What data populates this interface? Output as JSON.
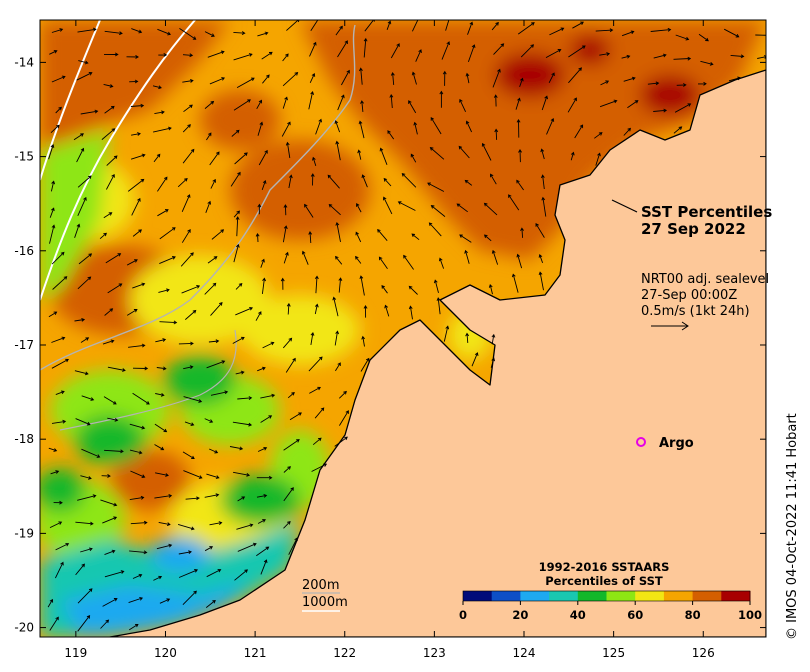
{
  "title": {
    "line1": "SST Percentiles",
    "line2": "27 Sep 2022"
  },
  "current_legend": {
    "line1": "NRT00 adj. sealevel",
    "line2": "27-Sep 00:00Z",
    "line3": "0.5m/s (1kt 24h)"
  },
  "argo": {
    "label": "Argo",
    "lon": 125.25,
    "lat": -18.0,
    "color": "#e600e6"
  },
  "depth_legend": {
    "line1": "200m",
    "line2": "1000m"
  },
  "colorbar": {
    "title_line1": "1992-2016 SSTAARS",
    "title_line2": "Percentiles of SST",
    "colors": [
      "#000c7a",
      "#0d4fc7",
      "#1ea9f0",
      "#19c7b0",
      "#12b82a",
      "#8ee614",
      "#f2e614",
      "#f5a500",
      "#d45f00",
      "#a80000"
    ],
    "ticks": [
      "0",
      "20",
      "40",
      "60",
      "80",
      "100"
    ]
  },
  "axes": {
    "x_ticks": [
      "119",
      "120",
      "121",
      "122",
      "123",
      "124",
      "125",
      "126"
    ],
    "y_ticks": [
      "-14",
      "-15",
      "-16",
      "-17",
      "-18",
      "-19",
      "-20"
    ],
    "xlim": [
      118.6,
      126.7
    ],
    "ylim": [
      -20.1,
      -13.55
    ]
  },
  "colors": {
    "land": "#fdc899",
    "coast": "#000000",
    "bathy": "#b4b4b4",
    "contour_1000": "#ffffff"
  },
  "credit": "© IMOS 04-Oct-2022 11:41 Hobart"
}
